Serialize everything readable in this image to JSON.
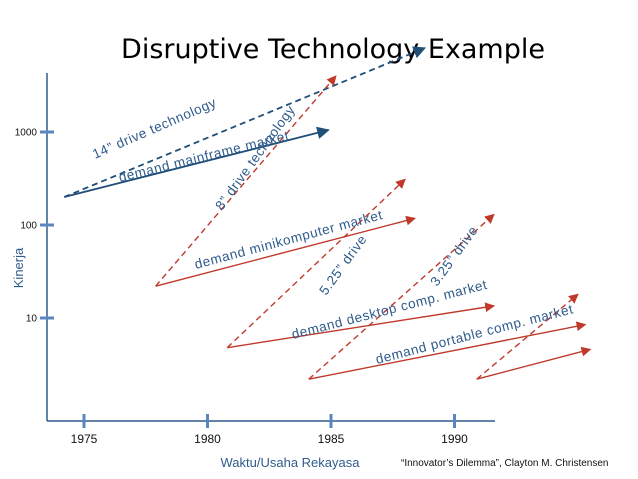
{
  "colors": {
    "axis": "#2f5b8c",
    "tick": "#5a86c0",
    "blue": "#1f4e79",
    "red": "#c0392b",
    "text_blue": "#2f5b8c"
  },
  "chart_data": {
    "type": "line",
    "title": "Disruptive Technology Example",
    "xlabel": "Waktu/Usaha Rekayasa",
    "ylabel": "Kinerja",
    "x_ticks": [
      "1975",
      "1980",
      "1985",
      "1990"
    ],
    "y_ticks": [
      "10",
      "100",
      "1000"
    ],
    "y_scale": "log",
    "source": "“Innovator’s Dilemma”, Clayton M. Christensen",
    "grid": false,
    "legend": "none",
    "series": [
      {
        "name": "14” drive technology",
        "color": "blue",
        "style": "dashed",
        "points": [
          [
            1974.2,
            200
          ],
          [
            1988.8,
            8000
          ]
        ]
      },
      {
        "name": "demand mainframe market",
        "color": "blue",
        "style": "solid",
        "points": [
          [
            1974.2,
            200
          ],
          [
            1984.9,
            1050
          ]
        ]
      },
      {
        "name": "8” drive technology",
        "color": "red",
        "style": "dashed",
        "points": [
          [
            1977.9,
            22
          ],
          [
            1985.2,
            4000
          ]
        ]
      },
      {
        "name": "demand minikomputer market",
        "color": "red",
        "style": "solid",
        "points": [
          [
            1977.9,
            22
          ],
          [
            1988.4,
            118
          ]
        ]
      },
      {
        "name": "5.25” drive",
        "color": "red",
        "style": "dashed",
        "points": [
          [
            1980.8,
            4.8
          ],
          [
            1988.0,
            310
          ]
        ]
      },
      {
        "name": "demand desktop comp. market",
        "color": "red",
        "style": "solid",
        "points": [
          [
            1980.8,
            4.8
          ],
          [
            1991.6,
            13.5
          ]
        ]
      },
      {
        "name": "3.25” drive",
        "color": "red",
        "style": "dashed",
        "points": [
          [
            1984.1,
            2.2
          ],
          [
            1991.6,
            130
          ]
        ]
      },
      {
        "name": "demand portable comp. market",
        "color": "red",
        "style": "solid",
        "points": [
          [
            1984.1,
            2.2
          ],
          [
            1995.3,
            8.5
          ]
        ]
      },
      {
        "name": "",
        "color": "red",
        "style": "dashed",
        "points": [
          [
            1990.9,
            2.2
          ],
          [
            1995.0,
            18
          ]
        ]
      },
      {
        "name": "",
        "color": "red",
        "style": "solid",
        "points": [
          [
            1990.9,
            2.2
          ],
          [
            1995.5,
            4.6
          ]
        ]
      }
    ]
  }
}
